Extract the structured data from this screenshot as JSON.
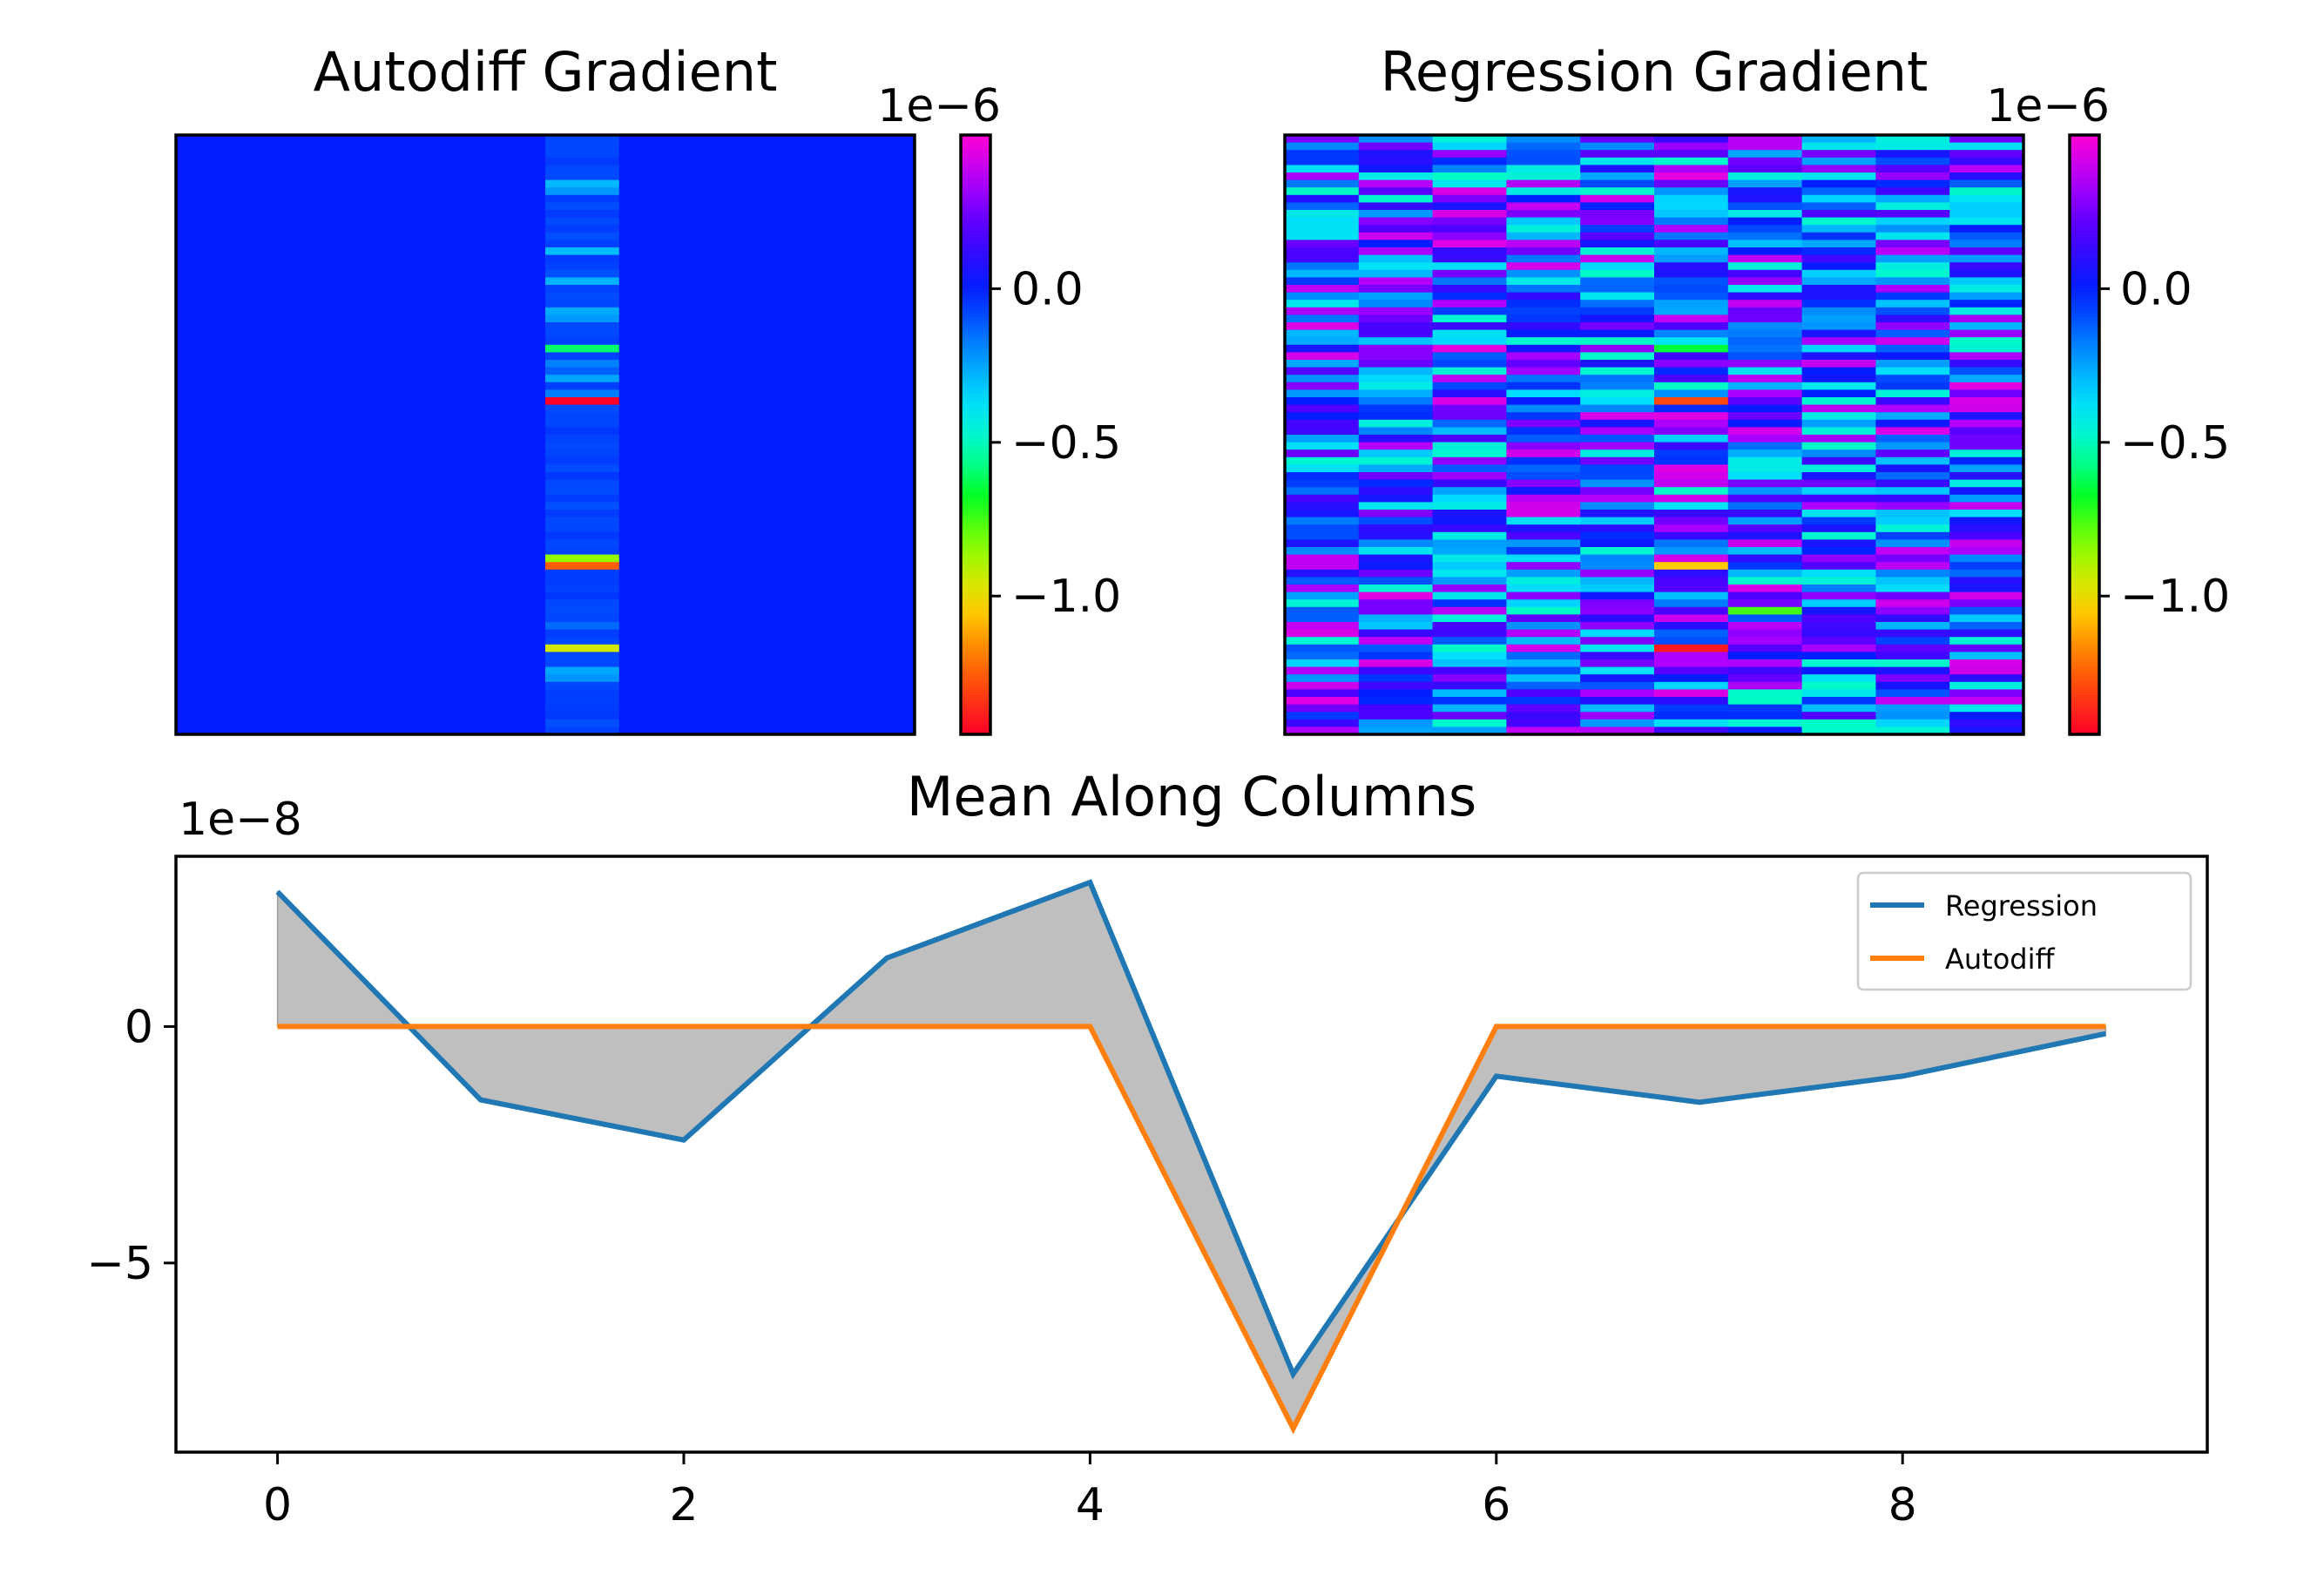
{
  "chart_data": [
    {
      "type": "heatmap",
      "title": "Autodiff Gradient",
      "columns": 10,
      "rows": 80,
      "colormap": "gist_rainbow_r",
      "colorbar": {
        "offset_label": "1e−6",
        "ticks": [
          0.0,
          -0.5,
          -1.0
        ],
        "tick_labels": [
          "0.0",
          "−0.5",
          "−1.0"
        ],
        "range": [
          -1.45,
          0.5
        ]
      },
      "nonzero_column": 5,
      "highlights": [
        {
          "column": 5,
          "row": 28,
          "value": -0.6
        },
        {
          "column": 5,
          "row": 35,
          "value": -1.45
        },
        {
          "column": 5,
          "row": 56,
          "value": -0.85
        },
        {
          "column": 5,
          "row": 57,
          "value": -1.25
        },
        {
          "column": 5,
          "row": 68,
          "value": -0.95
        }
      ]
    },
    {
      "type": "heatmap",
      "title": "Regression Gradient",
      "columns": 10,
      "rows": 80,
      "colormap": "gist_rainbow_r",
      "colorbar": {
        "offset_label": "1e−6",
        "ticks": [
          0.0,
          -0.5,
          -1.0
        ],
        "tick_labels": [
          "0.0",
          "−0.5",
          "−1.0"
        ],
        "range": [
          -1.45,
          0.5
        ]
      },
      "value_range": [
        -0.5,
        0.45
      ],
      "highlights": [
        {
          "column": 5,
          "row": 28,
          "value": -0.65
        },
        {
          "column": 5,
          "row": 35,
          "value": -1.3
        },
        {
          "column": 5,
          "row": 57,
          "value": -1.05
        },
        {
          "column": 5,
          "row": 68,
          "value": -1.4
        },
        {
          "column": 6,
          "row": 63,
          "value": -0.75
        }
      ]
    },
    {
      "type": "line",
      "title": "Mean Along Columns",
      "y_offset_label": "1e−8",
      "x": [
        0,
        1,
        2,
        3,
        4,
        5,
        6,
        7,
        8,
        9
      ],
      "xlim": [
        -0.5,
        9.5
      ],
      "ylim": [
        -9.0,
        3.6
      ],
      "xticks": [
        0,
        2,
        4,
        6,
        8
      ],
      "yticks": [
        0,
        -5
      ],
      "ytick_labels": [
        "0",
        "−5"
      ],
      "series": [
        {
          "name": "Regression",
          "color": "#1f77b4",
          "values": [
            2.85,
            -1.55,
            -2.4,
            1.45,
            3.05,
            -7.35,
            -1.05,
            -1.6,
            -1.05,
            -0.15
          ]
        },
        {
          "name": "Autodiff",
          "color": "#ff7f0e",
          "values": [
            0.0,
            0.0,
            0.0,
            0.0,
            0.0,
            -8.5,
            0.0,
            0.0,
            0.0,
            0.0
          ]
        }
      ],
      "fill_between_color": "#bfbfbf",
      "legend": [
        "Regression",
        "Autodiff"
      ],
      "legend_position": "upper right"
    }
  ]
}
